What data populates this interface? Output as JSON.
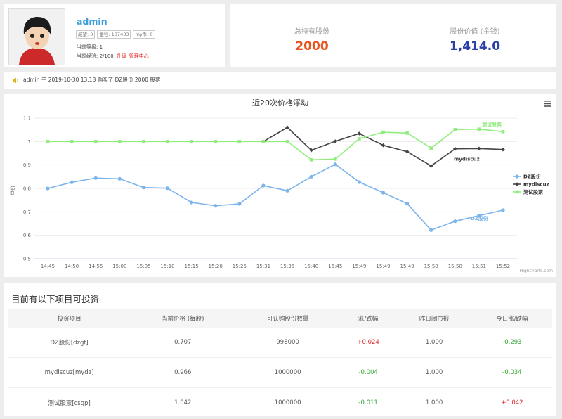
{
  "profile": {
    "username": "admin",
    "tags": [
      "威望: 0",
      "金钱: 107433",
      "my币: 0"
    ],
    "level_label": "当前等级: 1",
    "exp_label": "当前经验: 2/100",
    "upgrade_label": "升级",
    "manage_label": "管理中心"
  },
  "stats": {
    "holdings_label": "总持有股份",
    "holdings_value": "2000",
    "value_label": "股份价值 (金钱)",
    "value_value": "1,414.0"
  },
  "announcement": "admin 于 2019-10-30 13:13 购买了 DZ股份 2000 股票",
  "chart_data": {
    "type": "line",
    "title": "近20次价格浮动",
    "ylabel": "单价",
    "ylim": [
      0.5,
      1.1
    ],
    "yticks": [
      "0.5",
      "0.6",
      "0.7",
      "0.8",
      "0.9",
      "1",
      "1.1"
    ],
    "x": [
      "14:45",
      "14:50",
      "14:55",
      "15:00",
      "15:05",
      "15:10",
      "15:15",
      "15:20",
      "15:25",
      "15:31",
      "15:35",
      "15:40",
      "15:45",
      "15:49",
      "15:49",
      "15:49",
      "15:50",
      "15:50",
      "15:51",
      "15:52"
    ],
    "series": [
      {
        "name": "DZ股份",
        "color": "#7cb5ec",
        "values": [
          0.8,
          0.826,
          0.844,
          0.841,
          0.804,
          0.801,
          0.74,
          0.726,
          0.734,
          0.812,
          0.79,
          0.85,
          0.903,
          0.827,
          0.782,
          0.735,
          0.622,
          0.66,
          0.684,
          0.707
        ]
      },
      {
        "name": "mydiscuz",
        "color": "#434348",
        "values": [
          null,
          null,
          null,
          null,
          null,
          null,
          null,
          null,
          null,
          1.0,
          1.06,
          0.963,
          1.001,
          1.034,
          0.984,
          0.957,
          0.896,
          0.969,
          0.97,
          0.966
        ]
      },
      {
        "name": "测试股票",
        "color": "#90ed7d",
        "values": [
          1.0,
          1.0,
          1.0,
          1.0,
          1.0,
          1.0,
          1.0,
          1.0,
          1.0,
          1.0,
          1.0,
          0.922,
          0.925,
          1.012,
          1.04,
          1.036,
          0.972,
          1.051,
          1.053,
          1.042
        ]
      }
    ],
    "legend_position": "right",
    "credit": "Highcharts.com"
  },
  "investments": {
    "title": "目前有以下项目可投资",
    "headers": [
      "投资项目",
      "当前价格 (每股)",
      "可认购股份数量",
      "涨/跌幅",
      "昨日闭市报",
      "今日涨/跌幅"
    ],
    "rows": [
      {
        "cells": [
          "DZ股份[dzgf]",
          "0.707",
          "998000",
          "+0.024",
          "1.000",
          "-0.293"
        ]
      },
      {
        "cells": [
          "mydiscuz[mydz]",
          "0.966",
          "1000000",
          "-0.004",
          "1.000",
          "-0.034"
        ]
      },
      {
        "cells": [
          "测试股票[csgp]",
          "1.042",
          "1000000",
          "-0.011",
          "1.000",
          "+0.042"
        ]
      }
    ]
  },
  "colors": {
    "up": "#e02020",
    "down": "#2fa52f",
    "value_holdings": "#e8541e",
    "value_money": "#2a3fa8"
  }
}
